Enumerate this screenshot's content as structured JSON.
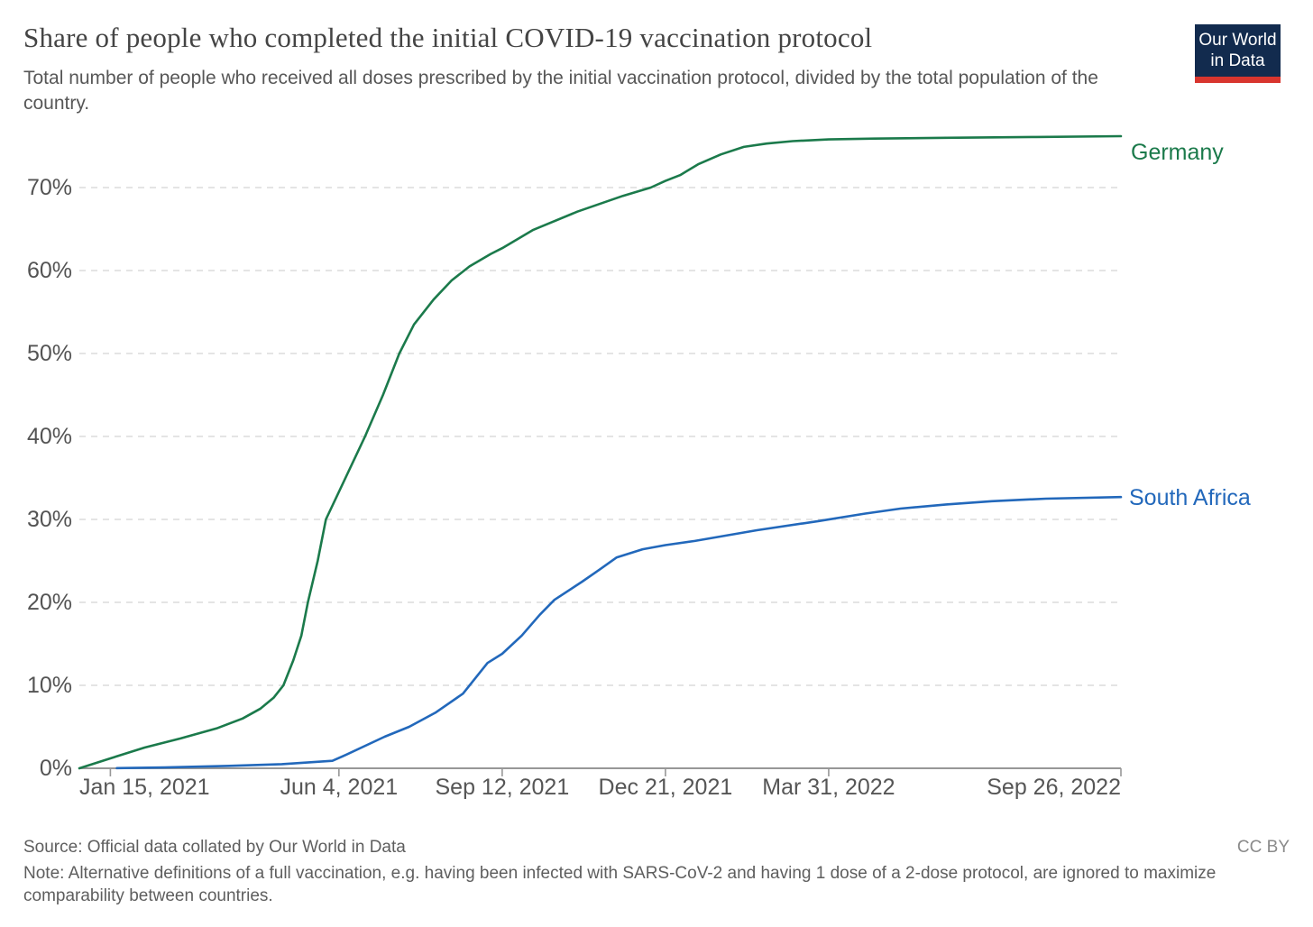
{
  "header": {
    "title": "Share of people who completed the initial COVID-19 vaccination protocol",
    "subtitle": "Total number of people who received all doses prescribed by the initial vaccination protocol, divided by the total population of the country.",
    "logo": {
      "line1": "Our World",
      "line2": "in Data",
      "bg_color": "#122b4e",
      "stripe_color": "#d8352e"
    }
  },
  "chart_data": {
    "type": "line",
    "title": "Share of people who completed the initial COVID-19 vaccination protocol",
    "xlabel": "",
    "ylabel": "",
    "x_domain": [
      "2020-12-27",
      "2022-09-26"
    ],
    "ylim": [
      0,
      77.5
    ],
    "grid": "horizontal dashed",
    "gridline_color": "#d4d4d4",
    "axis_color": "#979797",
    "legend_position": "end-of-line labels",
    "y_ticks": [
      0,
      10,
      20,
      30,
      40,
      50,
      60,
      70
    ],
    "y_tick_labels": [
      "0%",
      "10%",
      "20%",
      "30%",
      "40%",
      "50%",
      "60%",
      "70%"
    ],
    "x_tick_dates": [
      "2021-01-15",
      "2021-06-04",
      "2021-09-12",
      "2021-12-21",
      "2022-03-31",
      "2022-09-26"
    ],
    "x_tick_labels": [
      "Jan 15, 2021",
      "Jun 4, 2021",
      "Sep 12, 2021",
      "Dec 21, 2021",
      "Mar 31, 2022",
      "Sep 26, 2022"
    ],
    "series": [
      {
        "name": "Germany",
        "color": "#1b7a4b",
        "points": [
          [
            "2020-12-27",
            0
          ],
          [
            "2021-01-15",
            1.2
          ],
          [
            "2021-02-05",
            2.5
          ],
          [
            "2021-02-27",
            3.6
          ],
          [
            "2021-03-21",
            4.8
          ],
          [
            "2021-04-06",
            6.0
          ],
          [
            "2021-04-17",
            7.2
          ],
          [
            "2021-04-25",
            8.5
          ],
          [
            "2021-05-01",
            10.0
          ],
          [
            "2021-05-07",
            13.0
          ],
          [
            "2021-05-12",
            16.0
          ],
          [
            "2021-05-16",
            20.0
          ],
          [
            "2021-05-22",
            25.0
          ],
          [
            "2021-05-27",
            30.0
          ],
          [
            "2021-06-08",
            35.0
          ],
          [
            "2021-06-20",
            40.0
          ],
          [
            "2021-07-01",
            45.0
          ],
          [
            "2021-07-11",
            50.0
          ],
          [
            "2021-07-20",
            53.5
          ],
          [
            "2021-08-01",
            56.5
          ],
          [
            "2021-08-12",
            58.8
          ],
          [
            "2021-08-23",
            60.5
          ],
          [
            "2021-09-05",
            62.0
          ],
          [
            "2021-09-12",
            62.7
          ],
          [
            "2021-10-01",
            64.9
          ],
          [
            "2021-10-28",
            67.1
          ],
          [
            "2021-11-25",
            69.0
          ],
          [
            "2021-12-12",
            70.0
          ],
          [
            "2021-12-21",
            70.8
          ],
          [
            "2021-12-30",
            71.5
          ],
          [
            "2022-01-10",
            72.8
          ],
          [
            "2022-01-24",
            74.0
          ],
          [
            "2022-02-07",
            74.9
          ],
          [
            "2022-02-21",
            75.3
          ],
          [
            "2022-03-09",
            75.6
          ],
          [
            "2022-03-31",
            75.8
          ],
          [
            "2022-04-28",
            75.9
          ],
          [
            "2022-06-11",
            76.0
          ],
          [
            "2022-08-05",
            76.1
          ],
          [
            "2022-09-26",
            76.2
          ]
        ]
      },
      {
        "name": "South Africa",
        "color": "#2268bb",
        "points": [
          [
            "2021-01-19",
            0.02
          ],
          [
            "2021-02-17",
            0.1
          ],
          [
            "2021-03-31",
            0.3
          ],
          [
            "2021-04-30",
            0.5
          ],
          [
            "2021-05-31",
            0.9
          ],
          [
            "2021-06-08",
            1.6
          ],
          [
            "2021-07-02",
            3.8
          ],
          [
            "2021-07-17",
            5.0
          ],
          [
            "2021-08-02",
            6.7
          ],
          [
            "2021-08-19",
            9.0
          ],
          [
            "2021-09-03",
            12.7
          ],
          [
            "2021-09-12",
            13.8
          ],
          [
            "2021-09-24",
            16.0
          ],
          [
            "2021-10-05",
            18.5
          ],
          [
            "2021-10-14",
            20.3
          ],
          [
            "2021-10-31",
            22.5
          ],
          [
            "2021-11-11",
            24.0
          ],
          [
            "2021-11-21",
            25.4
          ],
          [
            "2021-12-07",
            26.4
          ],
          [
            "2021-12-21",
            26.9
          ],
          [
            "2022-01-08",
            27.4
          ],
          [
            "2022-02-15",
            28.7
          ],
          [
            "2022-03-25",
            29.8
          ],
          [
            "2022-04-22",
            30.7
          ],
          [
            "2022-05-14",
            31.3
          ],
          [
            "2022-06-11",
            31.8
          ],
          [
            "2022-07-09",
            32.2
          ],
          [
            "2022-08-11",
            32.5
          ],
          [
            "2022-09-26",
            32.7
          ]
        ]
      }
    ]
  },
  "footer": {
    "source": "Source: Official data collated by Our World in Data",
    "license": "CC BY",
    "note": "Note: Alternative definitions of a full vaccination, e.g. having been infected with SARS-CoV-2 and having 1 dose of a 2-dose protocol, are ignored to maximize comparability between countries."
  }
}
